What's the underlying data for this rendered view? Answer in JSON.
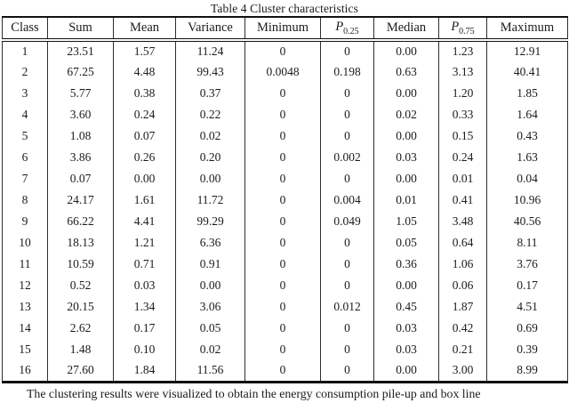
{
  "page": {
    "title": "Table 4 Cluster characteristics",
    "caption": "The clustering results were visualized to obtain the energy consumption pile-up and box line"
  },
  "table": {
    "columns": [
      {
        "label": "Class"
      },
      {
        "label": "Sum"
      },
      {
        "label": "Mean"
      },
      {
        "label": "Variance"
      },
      {
        "label": "Minimum"
      },
      {
        "label": "P",
        "sub": "0.25"
      },
      {
        "label": "Median"
      },
      {
        "label": "P",
        "sub": "0.75"
      },
      {
        "label": "Maximum"
      }
    ],
    "rows": [
      [
        "1",
        "23.51",
        "1.57",
        "11.24",
        "0",
        "0",
        "0.00",
        "1.23",
        "12.91"
      ],
      [
        "2",
        "67.25",
        "4.48",
        "99.43",
        "0.0048",
        "0.198",
        "0.63",
        "3.13",
        "40.41"
      ],
      [
        "3",
        "5.77",
        "0.38",
        "0.37",
        "0",
        "0",
        "0.00",
        "1.20",
        "1.85"
      ],
      [
        "4",
        "3.60",
        "0.24",
        "0.22",
        "0",
        "0",
        "0.02",
        "0.33",
        "1.64"
      ],
      [
        "5",
        "1.08",
        "0.07",
        "0.02",
        "0",
        "0",
        "0.00",
        "0.15",
        "0.43"
      ],
      [
        "6",
        "3.86",
        "0.26",
        "0.20",
        "0",
        "0.002",
        "0.03",
        "0.24",
        "1.63"
      ],
      [
        "7",
        "0.07",
        "0.00",
        "0.00",
        "0",
        "0",
        "0.00",
        "0.01",
        "0.04"
      ],
      [
        "8",
        "24.17",
        "1.61",
        "11.72",
        "0",
        "0.004",
        "0.01",
        "0.41",
        "10.96"
      ],
      [
        "9",
        "66.22",
        "4.41",
        "99.29",
        "0",
        "0.049",
        "1.05",
        "3.48",
        "40.56"
      ],
      [
        "10",
        "18.13",
        "1.21",
        "6.36",
        "0",
        "0",
        "0.05",
        "0.64",
        "8.11"
      ],
      [
        "11",
        "10.59",
        "0.71",
        "0.91",
        "0",
        "0",
        "0.36",
        "1.06",
        "3.76"
      ],
      [
        "12",
        "0.52",
        "0.03",
        "0.00",
        "0",
        "0",
        "0.00",
        "0.06",
        "0.17"
      ],
      [
        "13",
        "20.15",
        "1.34",
        "3.06",
        "0",
        "0.012",
        "0.45",
        "1.87",
        "4.51"
      ],
      [
        "14",
        "2.62",
        "0.17",
        "0.05",
        "0",
        "0",
        "0.03",
        "0.42",
        "0.69"
      ],
      [
        "15",
        "1.48",
        "0.10",
        "0.02",
        "0",
        "0",
        "0.03",
        "0.21",
        "0.39"
      ],
      [
        "16",
        "27.60",
        "1.84",
        "11.56",
        "0",
        "0",
        "0.00",
        "3.00",
        "8.99"
      ]
    ]
  },
  "colors": {
    "text": "#1b1b1b",
    "rule": "#111111",
    "grid": "#2e2e2e",
    "background": "#ffffff"
  }
}
